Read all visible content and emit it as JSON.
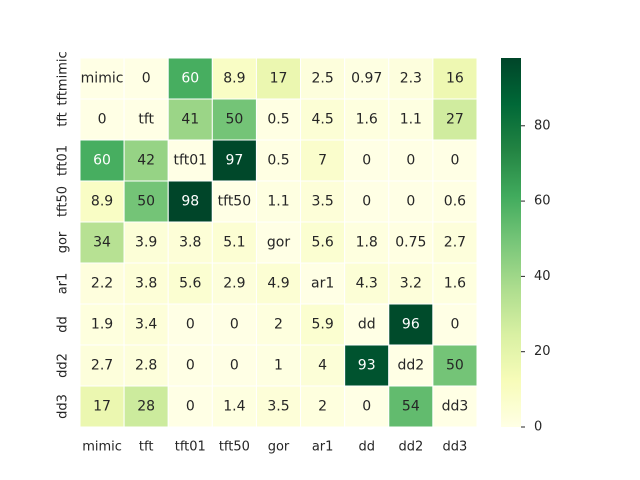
{
  "chart_data": {
    "type": "heatmap",
    "title": "",
    "xlabel": "",
    "ylabel": "",
    "row_labels": [
      "tftmimic",
      "tft",
      "tft01",
      "tft50",
      "gor",
      "ar1",
      "dd",
      "dd2",
      "dd3"
    ],
    "col_labels": [
      "mimic",
      "tft",
      "tft01",
      "tft50",
      "gor",
      "ar1",
      "dd",
      "dd2",
      "dd3"
    ],
    "values": [
      [
        null,
        0,
        60,
        8.9,
        17,
        2.5,
        0.97,
        2.3,
        16
      ],
      [
        0,
        null,
        41,
        50,
        0.5,
        4.5,
        1.6,
        1.1,
        27
      ],
      [
        60,
        42,
        null,
        97,
        0.5,
        7,
        0,
        0,
        0
      ],
      [
        8.9,
        50,
        98,
        null,
        1.1,
        3.5,
        0,
        0,
        0.6
      ],
      [
        34,
        3.9,
        3.8,
        5.1,
        null,
        5.6,
        1.8,
        0.75,
        2.7
      ],
      [
        2.2,
        3.8,
        5.6,
        2.9,
        4.9,
        null,
        4.3,
        3.2,
        1.6
      ],
      [
        1.9,
        3.4,
        0,
        0,
        2,
        5.9,
        null,
        96,
        0
      ],
      [
        2.7,
        2.8,
        0,
        0,
        1,
        4,
        93,
        null,
        50
      ],
      [
        17,
        28,
        0,
        1.4,
        3.5,
        2,
        0,
        54,
        null
      ]
    ],
    "cell_labels": [
      [
        "mimic",
        "0",
        "60",
        "8.9",
        "17",
        "2.5",
        "0.97",
        "2.3",
        "16"
      ],
      [
        "0",
        "tft",
        "41",
        "50",
        "0.5",
        "4.5",
        "1.6",
        "1.1",
        "27"
      ],
      [
        "60",
        "42",
        "tft01",
        "97",
        "0.5",
        "7",
        "0",
        "0",
        "0"
      ],
      [
        "8.9",
        "50",
        "98",
        "tft50",
        "1.1",
        "3.5",
        "0",
        "0",
        "0.6"
      ],
      [
        "34",
        "3.9",
        "3.8",
        "5.1",
        "gor",
        "5.6",
        "1.8",
        "0.75",
        "2.7"
      ],
      [
        "2.2",
        "3.8",
        "5.6",
        "2.9",
        "4.9",
        "ar1",
        "4.3",
        "3.2",
        "1.6"
      ],
      [
        "1.9",
        "3.4",
        "0",
        "0",
        "2",
        "5.9",
        "dd",
        "96",
        "0"
      ],
      [
        "2.7",
        "2.8",
        "0",
        "0",
        "1",
        "4",
        "93",
        "dd2",
        "50"
      ],
      [
        "17",
        "28",
        "0",
        "1.4",
        "3.5",
        "2",
        "0",
        "54",
        "dd3"
      ]
    ],
    "colorbar": {
      "colormap": "YlGn",
      "range": [
        0,
        98
      ],
      "ticks": [
        0,
        20,
        40,
        60,
        80
      ],
      "tick_labels": [
        "0",
        "20",
        "40",
        "60",
        "80"
      ]
    },
    "colors": {
      "diagonal_fill": "#ffffe5",
      "cell_border": "#ffffff",
      "text_dark": "#262626",
      "text_light": "#ffffff"
    },
    "grid": false
  }
}
